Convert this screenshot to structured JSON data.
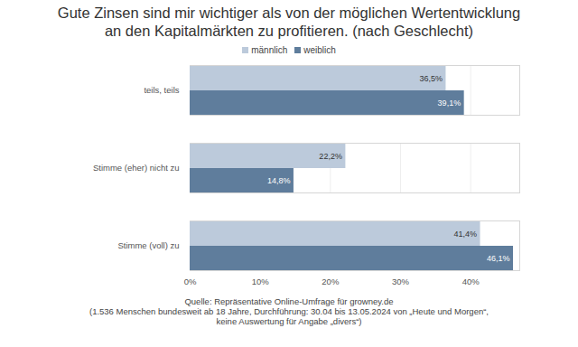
{
  "chart_data": {
    "type": "bar",
    "title": "Gute Zinsen sind mir wichtiger als von der möglichen Wertentwicklung an den Kapitalmärkten zu profitieren. (nach Geschlecht)",
    "categories": [
      "teils, teils",
      "Stimme (eher) nicht zu",
      "Stimme (voll) zu"
    ],
    "series": [
      {
        "name": "männlich",
        "color": "#bccadb",
        "values": [
          36.5,
          22.2,
          41.4
        ],
        "value_labels": [
          "36,5%",
          "22,2%",
          "41,4%"
        ]
      },
      {
        "name": "weiblich",
        "color": "#5f7d9c",
        "values": [
          39.1,
          14.8,
          46.1
        ],
        "value_labels": [
          "39,1%",
          "14,8%",
          "46,1%"
        ]
      }
    ],
    "xlim": [
      0,
      47
    ],
    "xticks": [
      {
        "value": 0,
        "label": "0%"
      },
      {
        "value": 10,
        "label": "10%"
      },
      {
        "value": 20,
        "label": "20%"
      },
      {
        "value": 30,
        "label": "30%"
      },
      {
        "value": 40,
        "label": "40%"
      }
    ],
    "orientation": "horizontal",
    "grid": true,
    "legend": "top",
    "data_labels": true,
    "caption": [
      "Quelle: Repräsentative Online-Umfrage für growney.de",
      "(1.536 Menschen bundesweit ab 18 Jahre, Durchführung: 30.04 bis 13.05.2024 von „Heute und Morgen“,",
      "keine Auswertung für Angabe „divers“)"
    ]
  }
}
